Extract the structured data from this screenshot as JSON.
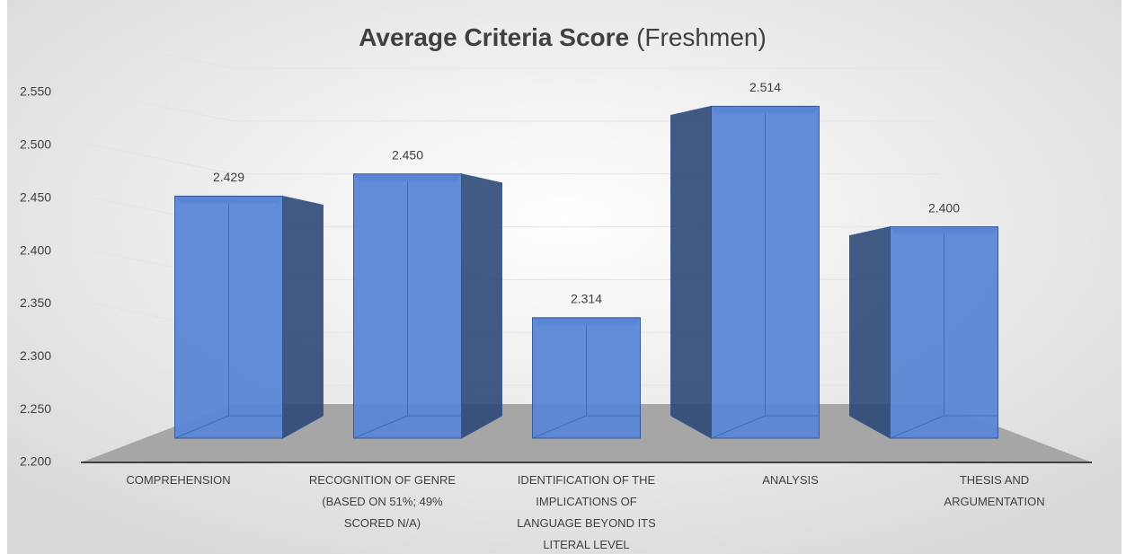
{
  "chart_data": {
    "type": "bar3d",
    "title": "Average Criteria Score",
    "subtitle": "(Freshmen)",
    "categories": [
      "COMPREHENSION",
      "RECOGNITION OF GENRE (BASED ON 51%; 49% SCORED N/A)",
      "IDENTIFICATION OF THE IMPLICATIONS OF LANGUAGE BEYOND ITS LITERAL LEVEL",
      "ANALYSIS",
      "THESIS AND ARGUMENTATION"
    ],
    "values": [
      2.429,
      2.45,
      2.314,
      2.514,
      2.4
    ],
    "value_labels": [
      "2.429",
      "2.450",
      "2.314",
      "2.514",
      "2.400"
    ],
    "color": "#5b87d6",
    "ylim": [
      2.2,
      2.55
    ],
    "yticks": [
      {
        "value": 2.2,
        "label": "2.200"
      },
      {
        "value": 2.25,
        "label": "2.250"
      },
      {
        "value": 2.3,
        "label": "2.300"
      },
      {
        "value": 2.35,
        "label": "2.350"
      },
      {
        "value": 2.4,
        "label": "2.400"
      },
      {
        "value": 2.45,
        "label": "2.450"
      },
      {
        "value": 2.5,
        "label": "2.500"
      },
      {
        "value": 2.55,
        "label": "2.550"
      }
    ],
    "grid": true
  }
}
